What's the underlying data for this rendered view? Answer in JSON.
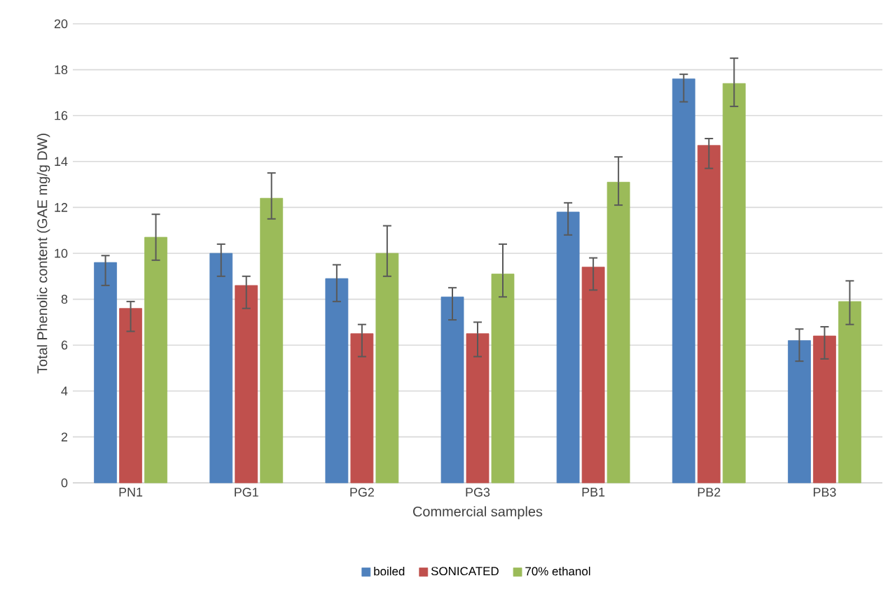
{
  "chart_data": {
    "type": "bar",
    "xlabel": "Commercial samples",
    "ylabel": "Total Phenolic content (GAE mg/g DW)",
    "categories": [
      "PN1",
      "PG1",
      "PG2",
      "PG3",
      "PB1",
      "PB2",
      "PB3"
    ],
    "series": [
      {
        "name": "boiled",
        "color": "#4f81bd",
        "values": [
          9.6,
          10.0,
          8.9,
          8.1,
          11.8,
          17.6,
          6.2
        ],
        "errors": [
          [
            8.6,
            9.9
          ],
          [
            9.0,
            10.4
          ],
          [
            7.9,
            9.5
          ],
          [
            7.1,
            8.5
          ],
          [
            10.8,
            12.2
          ],
          [
            16.6,
            17.8
          ],
          [
            5.3,
            6.7
          ]
        ]
      },
      {
        "name": "SONICATED",
        "color": "#c0504d",
        "values": [
          7.6,
          8.6,
          6.5,
          6.5,
          9.4,
          14.7,
          6.4
        ],
        "errors": [
          [
            6.6,
            7.9
          ],
          [
            7.6,
            9.0
          ],
          [
            5.5,
            6.9
          ],
          [
            5.5,
            7.0
          ],
          [
            8.4,
            9.8
          ],
          [
            13.7,
            15.0
          ],
          [
            5.4,
            6.8
          ]
        ]
      },
      {
        "name": "70% ethanol",
        "color": "#9bbb59",
        "values": [
          10.7,
          12.4,
          10.0,
          9.1,
          13.1,
          17.4,
          7.9
        ],
        "errors": [
          [
            9.7,
            11.7
          ],
          [
            11.5,
            13.5
          ],
          [
            9.0,
            11.2
          ],
          [
            8.1,
            10.4
          ],
          [
            12.1,
            14.2
          ],
          [
            16.4,
            18.5
          ],
          [
            6.9,
            8.8
          ]
        ]
      }
    ],
    "ylim": [
      0,
      20
    ],
    "yticks": [
      0,
      2,
      4,
      6,
      8,
      10,
      12,
      14,
      16,
      18,
      20
    ],
    "grid": "y",
    "legend": "bottom"
  }
}
